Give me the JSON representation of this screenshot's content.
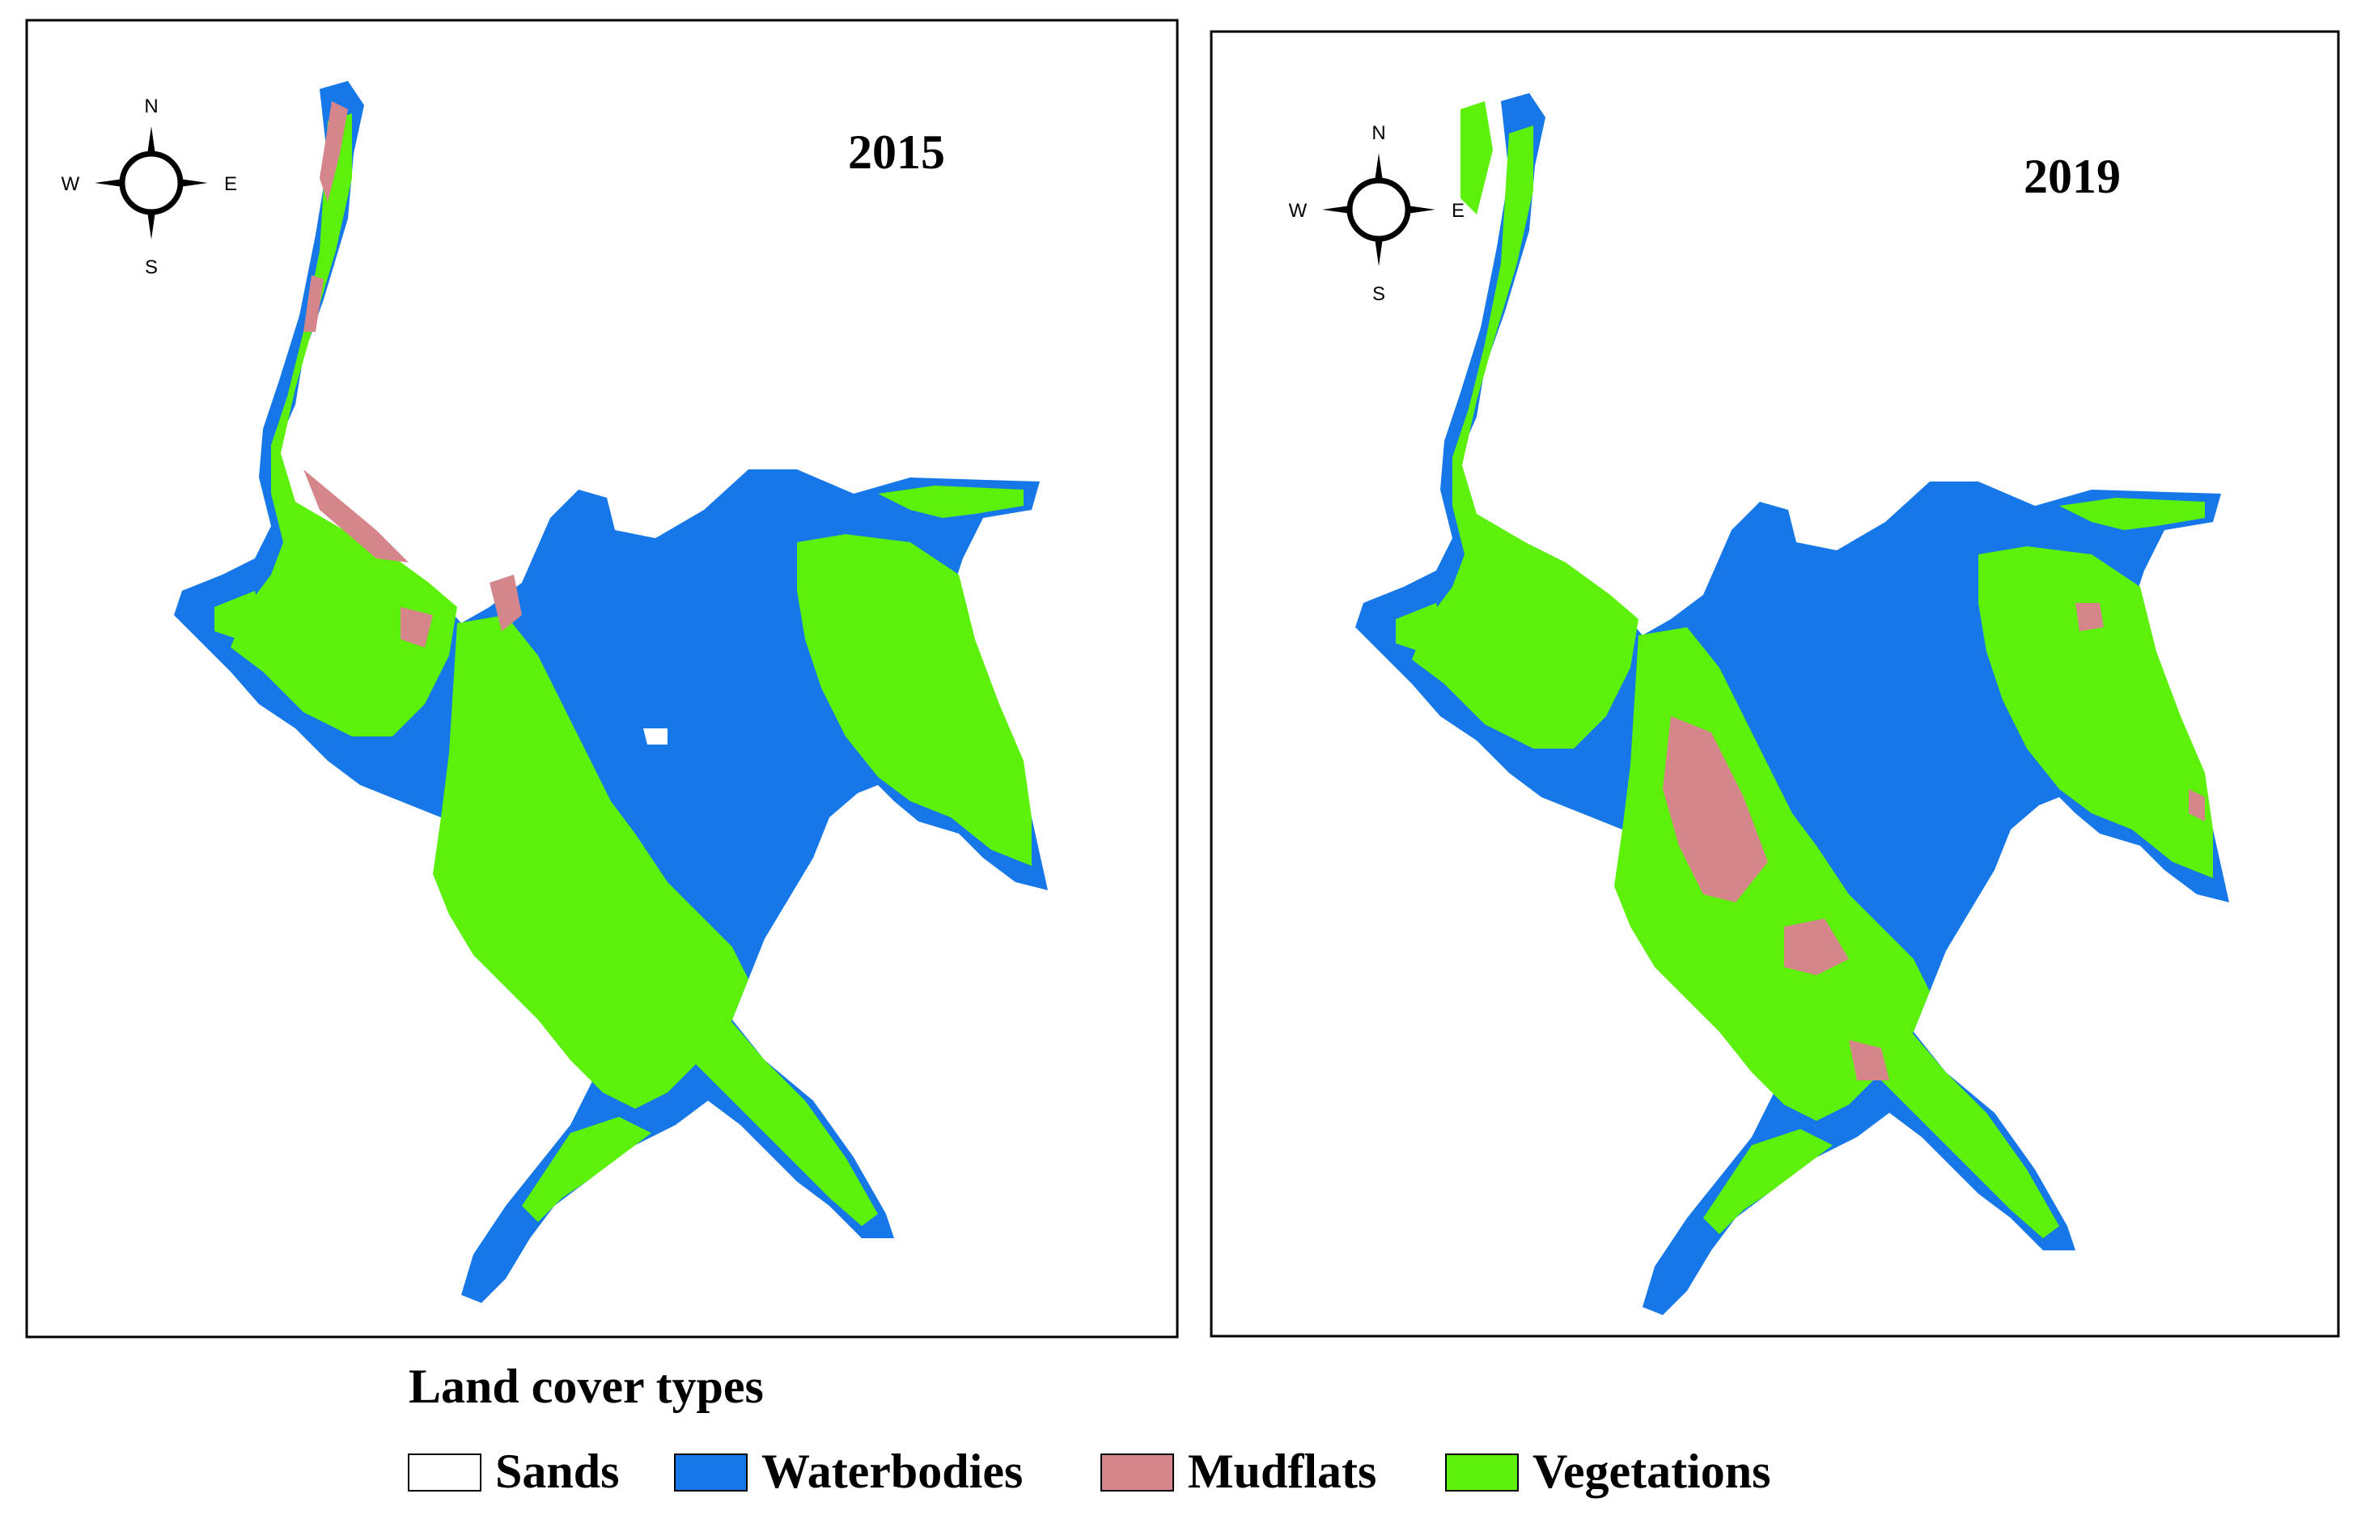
{
  "panels": [
    {
      "year": "2015"
    },
    {
      "year": "2019"
    }
  ],
  "compass": {
    "north": "N",
    "south": "S",
    "east": "E",
    "west": "W"
  },
  "legend": {
    "title": "Land cover types",
    "items": [
      {
        "label": "Sands",
        "color": "#ffffff"
      },
      {
        "label": "Waterbodies",
        "color": "#1577e8"
      },
      {
        "label": "Mudflats",
        "color": "#d4868a"
      },
      {
        "label": "Vegetations",
        "color": "#5cf00b"
      }
    ]
  },
  "colors": {
    "water": "#1577e8",
    "vegetation": "#5cf00b",
    "mudflat": "#d4868a",
    "sand": "#ffffff",
    "frame": "#000000"
  }
}
